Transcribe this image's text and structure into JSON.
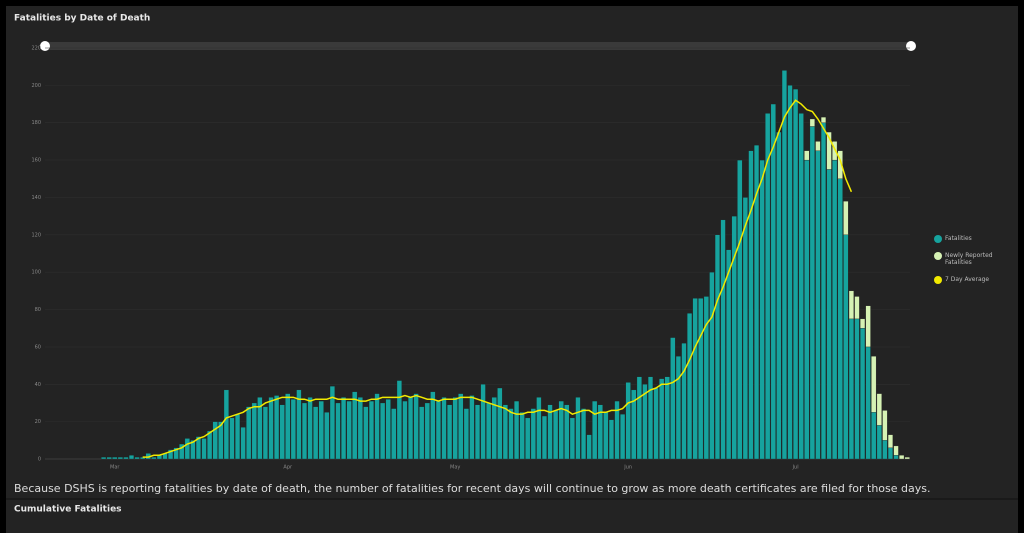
{
  "chart_data": {
    "type": "bar",
    "title": "Fatalities by Date of Death",
    "categories": [
      null,
      null,
      null,
      null,
      null,
      null,
      null,
      null,
      null,
      null,
      null,
      null,
      "Mar",
      null,
      null,
      null,
      null,
      null,
      null,
      null,
      null,
      null,
      null,
      null,
      null,
      null,
      null,
      null,
      null,
      null,
      null,
      null,
      null,
      null,
      null,
      null,
      null,
      null,
      null,
      null,
      null,
      null,
      null,
      "Apr",
      null,
      null,
      null,
      null,
      null,
      null,
      null,
      null,
      null,
      null,
      null,
      null,
      null,
      null,
      null,
      null,
      null,
      null,
      null,
      null,
      null,
      null,
      null,
      null,
      null,
      null,
      null,
      null,
      null,
      "May",
      null,
      null,
      null,
      null,
      null,
      null,
      null,
      null,
      null,
      null,
      null,
      null,
      null,
      null,
      null,
      null,
      null,
      null,
      null,
      null,
      null,
      null,
      null,
      null,
      null,
      null,
      null,
      null,
      null,
      null,
      "Jun",
      null,
      null,
      null,
      null,
      null,
      null,
      null,
      null,
      null,
      null,
      null,
      null,
      null,
      null,
      null,
      null,
      null,
      null,
      null,
      null,
      null,
      null,
      null,
      null,
      null,
      null,
      null,
      null,
      null,
      "Jul",
      null,
      null,
      null,
      null,
      null,
      null,
      null,
      null,
      null,
      null,
      null,
      null,
      null,
      null,
      null,
      null,
      null,
      null,
      null,
      null
    ],
    "series": [
      {
        "name": "Fatalities",
        "color": "#16a39e",
        "values": [
          0,
          0,
          0,
          0,
          0,
          0,
          0,
          0,
          0,
          0,
          1,
          1,
          1,
          1,
          1,
          2,
          1,
          1,
          3,
          1,
          2,
          3,
          5,
          6,
          8,
          11,
          10,
          12,
          11,
          15,
          20,
          20,
          37,
          22,
          24,
          17,
          28,
          30,
          33,
          28,
          33,
          34,
          29,
          35,
          32,
          37,
          30,
          33,
          28,
          31,
          25,
          39,
          30,
          33,
          31,
          36,
          33,
          28,
          31,
          35,
          30,
          32,
          27,
          42,
          31,
          33,
          35,
          28,
          30,
          36,
          31,
          33,
          29,
          33,
          35,
          27,
          34,
          29,
          40,
          30,
          33,
          38,
          29,
          27,
          31,
          25,
          22,
          27,
          33,
          23,
          29,
          26,
          31,
          29,
          22,
          33,
          27,
          13,
          31,
          29,
          25,
          21,
          31,
          24,
          41,
          37,
          44,
          40,
          44,
          38,
          43,
          44,
          65,
          55,
          62,
          78,
          86,
          86,
          87,
          100,
          120,
          128,
          112,
          130,
          160,
          140,
          165,
          168,
          160,
          185,
          190,
          175,
          208,
          200,
          198,
          185,
          160,
          178,
          165,
          180,
          155,
          160,
          150,
          120,
          75,
          75,
          70,
          60,
          25,
          18,
          10,
          6,
          2,
          0,
          0
        ]
      },
      {
        "name": "Newly Reported Fatalities",
        "color": "#d6f2b4",
        "values": [
          0,
          0,
          0,
          0,
          0,
          0,
          0,
          0,
          0,
          0,
          0,
          0,
          0,
          0,
          0,
          0,
          0,
          0,
          0,
          0,
          0,
          0,
          0,
          0,
          0,
          0,
          0,
          0,
          0,
          0,
          0,
          0,
          0,
          0,
          0,
          0,
          0,
          0,
          0,
          0,
          0,
          0,
          0,
          0,
          0,
          0,
          0,
          0,
          0,
          0,
          0,
          0,
          0,
          0,
          0,
          0,
          0,
          0,
          0,
          0,
          0,
          0,
          0,
          0,
          0,
          0,
          0,
          0,
          0,
          0,
          0,
          0,
          0,
          0,
          0,
          0,
          0,
          0,
          0,
          0,
          0,
          0,
          0,
          0,
          0,
          0,
          0,
          0,
          0,
          0,
          0,
          0,
          0,
          0,
          0,
          0,
          0,
          0,
          0,
          0,
          0,
          0,
          0,
          0,
          0,
          0,
          0,
          0,
          0,
          0,
          0,
          0,
          0,
          0,
          0,
          0,
          0,
          0,
          0,
          0,
          0,
          0,
          0,
          0,
          0,
          0,
          0,
          0,
          0,
          0,
          0,
          0,
          0,
          0,
          0,
          0,
          5,
          4,
          5,
          3,
          20,
          10,
          15,
          18,
          15,
          12,
          5,
          22,
          30,
          17,
          16,
          7,
          5,
          2,
          1
        ]
      },
      {
        "name": "7 Day Average",
        "color": "#f2ea00",
        "type": "line",
        "values": [
          null,
          null,
          null,
          null,
          null,
          null,
          null,
          null,
          null,
          null,
          null,
          null,
          null,
          null,
          null,
          null,
          null,
          1,
          1,
          2,
          2,
          3,
          4,
          5,
          6,
          8,
          9,
          11,
          12,
          14,
          16,
          18,
          22,
          23,
          24,
          25,
          27,
          28,
          28,
          30,
          31,
          32,
          33,
          33,
          33,
          32,
          32,
          31,
          32,
          32,
          32,
          33,
          32,
          32,
          32,
          32,
          31,
          31,
          32,
          32,
          33,
          33,
          33,
          33,
          34,
          33,
          34,
          33,
          32,
          32,
          31,
          32,
          32,
          32,
          33,
          33,
          33,
          32,
          31,
          30,
          29,
          28,
          27,
          25,
          24,
          24,
          25,
          25,
          26,
          26,
          25,
          26,
          27,
          26,
          24,
          25,
          26,
          26,
          24,
          25,
          25,
          26,
          26,
          27,
          30,
          31,
          33,
          35,
          37,
          38,
          40,
          40,
          41,
          43,
          47,
          53,
          60,
          66,
          72,
          76,
          85,
          92,
          100,
          108,
          116,
          125,
          133,
          142,
          150,
          160,
          167,
          175,
          183,
          188,
          192,
          190,
          187,
          186,
          182,
          177,
          172,
          166,
          160,
          150,
          143,
          null,
          null,
          null,
          null,
          null,
          null,
          null,
          null,
          null,
          null
        ]
      }
    ],
    "ylim": [
      0,
      220
    ],
    "yticks": [
      0,
      20,
      40,
      60,
      80,
      100,
      120,
      140,
      160,
      180,
      200,
      220
    ],
    "grid": true
  },
  "note": "Because DSHS is reporting fatalities by date of death, the number of fatalities for recent days will continue to grow as more death certificates are filed for those days.",
  "next_panel_title": "Cumulative Fatalities"
}
